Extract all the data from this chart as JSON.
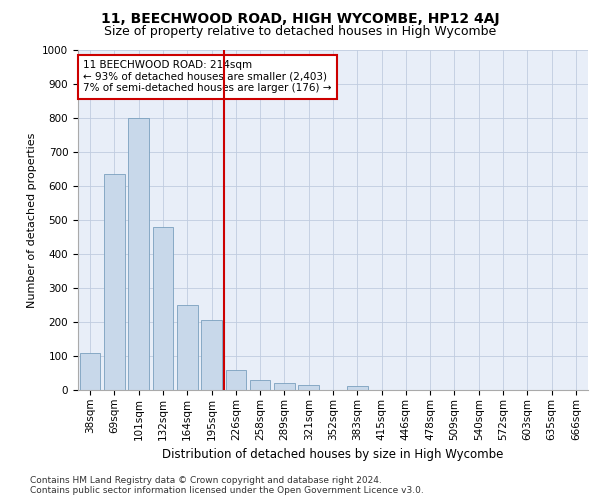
{
  "title1": "11, BEECHWOOD ROAD, HIGH WYCOMBE, HP12 4AJ",
  "title2": "Size of property relative to detached houses in High Wycombe",
  "xlabel": "Distribution of detached houses by size in High Wycombe",
  "ylabel": "Number of detached properties",
  "categories": [
    "38sqm",
    "69sqm",
    "101sqm",
    "132sqm",
    "164sqm",
    "195sqm",
    "226sqm",
    "258sqm",
    "289sqm",
    "321sqm",
    "352sqm",
    "383sqm",
    "415sqm",
    "446sqm",
    "478sqm",
    "509sqm",
    "540sqm",
    "572sqm",
    "603sqm",
    "635sqm",
    "666sqm"
  ],
  "values": [
    110,
    635,
    800,
    480,
    250,
    205,
    60,
    28,
    22,
    15,
    0,
    12,
    0,
    0,
    0,
    0,
    0,
    0,
    0,
    0,
    0
  ],
  "bar_color": "#c8d8ea",
  "bar_edge_color": "#7aa0be",
  "vline_x": 5.5,
  "vline_color": "#cc0000",
  "annotation_text": "11 BEECHWOOD ROAD: 214sqm\n← 93% of detached houses are smaller (2,403)\n7% of semi-detached houses are larger (176) →",
  "annotation_box_color": "#cc0000",
  "ylim": [
    0,
    1000
  ],
  "yticks": [
    0,
    100,
    200,
    300,
    400,
    500,
    600,
    700,
    800,
    900,
    1000
  ],
  "grid_color": "#c0cce0",
  "background_color": "#e8eef8",
  "footnote": "Contains HM Land Registry data © Crown copyright and database right 2024.\nContains public sector information licensed under the Open Government Licence v3.0.",
  "title1_fontsize": 10,
  "title2_fontsize": 9,
  "xlabel_fontsize": 8.5,
  "ylabel_fontsize": 8,
  "tick_fontsize": 7.5,
  "annot_fontsize": 7.5,
  "footnote_fontsize": 6.5
}
